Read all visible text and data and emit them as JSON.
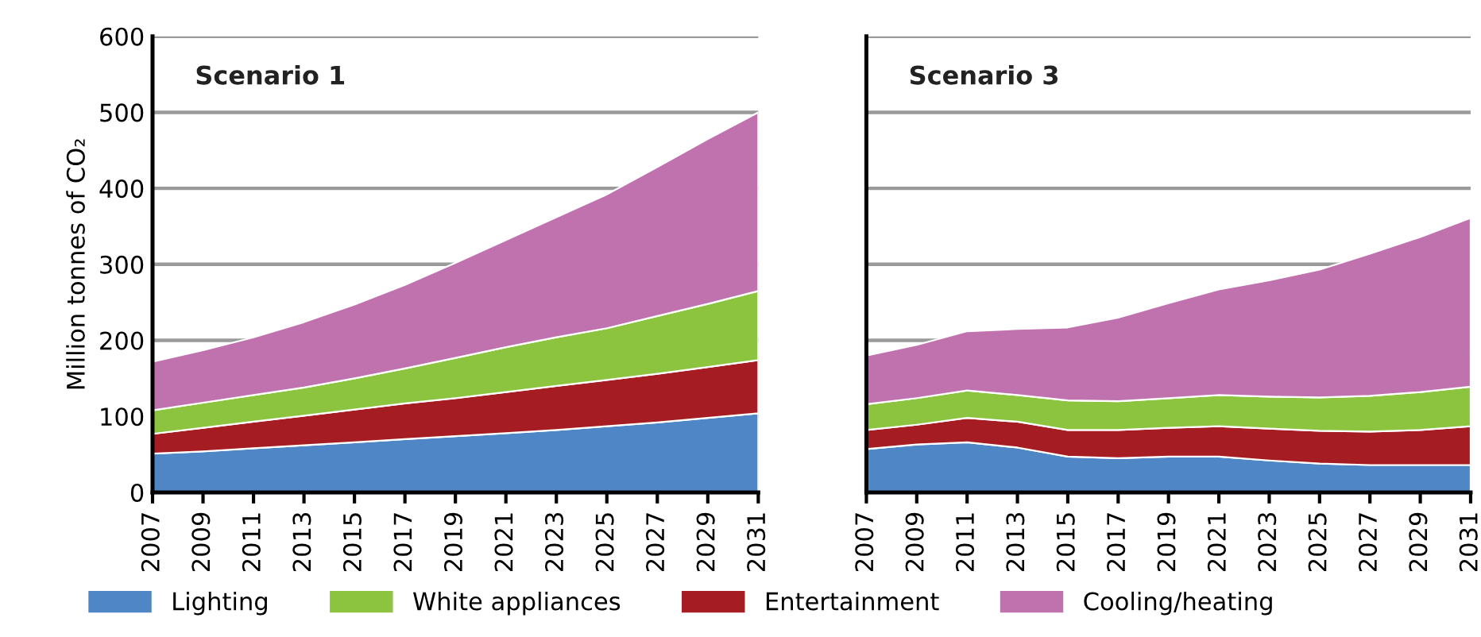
{
  "chart_data": [
    {
      "type": "area",
      "stacked": true,
      "title": "Scenario 1",
      "ylabel": "Million tonnes of CO₂",
      "x": [
        2007,
        2009,
        2011,
        2013,
        2015,
        2017,
        2019,
        2021,
        2023,
        2025,
        2027,
        2029,
        2031
      ],
      "xlim": [
        2007,
        2031
      ],
      "xticks": [
        2007,
        2009,
        2011,
        2013,
        2015,
        2017,
        2019,
        2021,
        2023,
        2025,
        2027,
        2029,
        2031
      ],
      "ylim": [
        0,
        600
      ],
      "yticks": [
        0,
        100,
        200,
        300,
        400,
        500,
        600
      ],
      "grid": "y",
      "legend": "bottom",
      "series": [
        {
          "name": "Lighting",
          "color": "#4f86c6",
          "values": [
            51,
            54,
            58,
            62,
            66,
            70,
            74,
            78,
            82,
            87,
            92,
            98,
            104
          ]
        },
        {
          "name": "Entertainment",
          "color": "#a51c22",
          "values": [
            26,
            31,
            35,
            39,
            43,
            47,
            50,
            54,
            58,
            61,
            64,
            67,
            70
          ]
        },
        {
          "name": "White appliances",
          "color": "#8cc43f",
          "values": [
            31,
            33,
            35,
            37,
            41,
            46,
            53,
            59,
            64,
            68,
            76,
            83,
            91
          ]
        },
        {
          "name": "Cooling/heating",
          "color": "#bf72ae",
          "values": [
            64,
            69,
            76,
            86,
            97,
            110,
            125,
            141,
            158,
            176,
            196,
            217,
            235
          ]
        }
      ]
    },
    {
      "type": "area",
      "stacked": true,
      "title": "Scenario 3",
      "x": [
        2007,
        2009,
        2011,
        2013,
        2015,
        2017,
        2019,
        2021,
        2023,
        2025,
        2027,
        2029,
        2031
      ],
      "xlim": [
        2007,
        2031
      ],
      "xticks": [
        2007,
        2009,
        2011,
        2013,
        2015,
        2017,
        2019,
        2021,
        2023,
        2025,
        2027,
        2029,
        2031
      ],
      "ylim": [
        0,
        600
      ],
      "yticks": [
        0,
        100,
        200,
        300,
        400,
        500,
        600
      ],
      "grid": "y",
      "tick_labels": "x",
      "series": [
        {
          "color": "#4f86c6",
          "values": [
            57,
            63,
            66,
            59,
            47,
            45,
            47,
            47,
            42,
            38,
            36,
            36,
            36
          ]
        },
        {
          "color": "#a51c22",
          "values": [
            25,
            26,
            32,
            34,
            35,
            37,
            38,
            40,
            42,
            43,
            44,
            46,
            51
          ]
        },
        {
          "color": "#8cc43f",
          "values": [
            34,
            35,
            36,
            35,
            39,
            38,
            39,
            41,
            42,
            44,
            47,
            50,
            52
          ]
        },
        {
          "color": "#bf72ae",
          "values": [
            64,
            70,
            78,
            87,
            96,
            110,
            125,
            139,
            153,
            168,
            187,
            204,
            222
          ]
        }
      ]
    }
  ]
}
